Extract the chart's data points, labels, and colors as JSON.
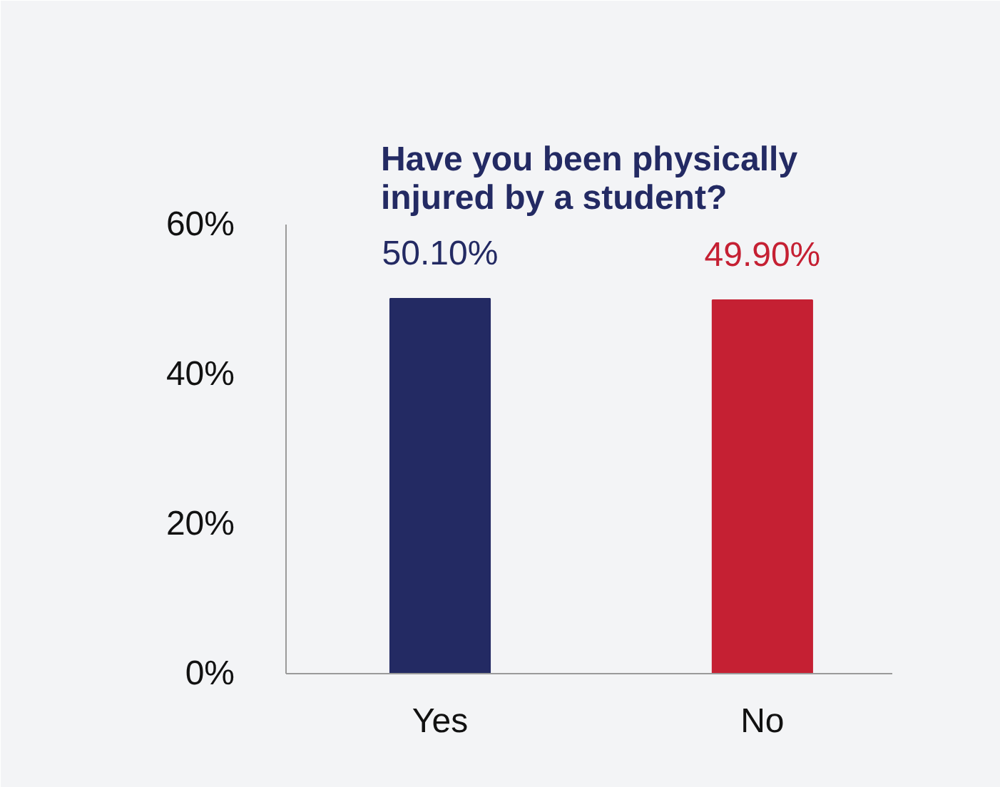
{
  "chart_data": {
    "type": "bar",
    "title": "Have you been physically\ninjured by a student?",
    "categories": [
      "Yes",
      "No"
    ],
    "values": [
      50.1,
      49.9
    ],
    "colors": [
      "#232a63",
      "#c52033"
    ],
    "value_labels": [
      "50.10%",
      "49.90%"
    ],
    "ylim": [
      0,
      60
    ],
    "yticks": [
      {
        "value": 0,
        "label": "0%"
      },
      {
        "value": 20,
        "label": "20%"
      },
      {
        "value": 40,
        "label": "40%"
      },
      {
        "value": 60,
        "label": "60%"
      }
    ],
    "grid": false
  }
}
